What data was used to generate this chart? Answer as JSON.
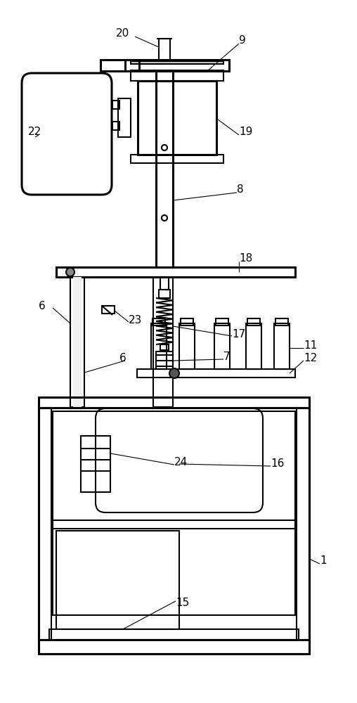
{
  "fig_width": 5.08,
  "fig_height": 10.0,
  "dpi": 100,
  "bg_color": "#ffffff",
  "lc": "#000000",
  "lw": 1.5,
  "lw2": 2.2
}
